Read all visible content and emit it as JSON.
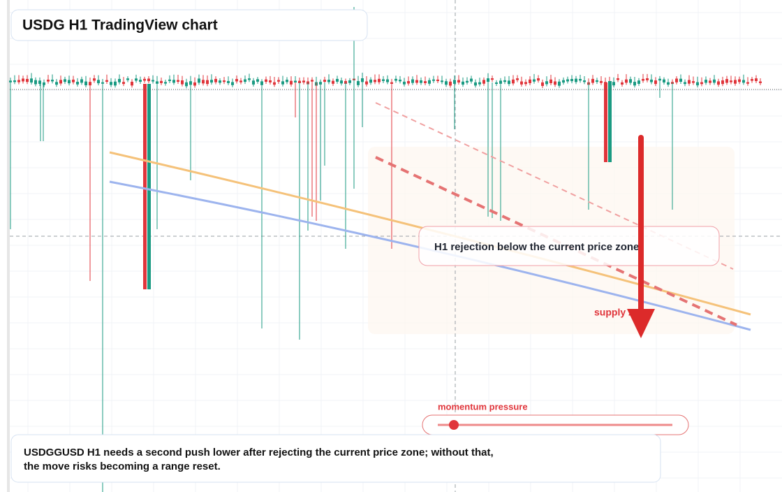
{
  "header": {
    "title": "USDG H1 TradingView chart"
  },
  "annotations": {
    "rejection": "H1 rejection below the current price zone",
    "zone": "supply zone",
    "momentum": "momentum pressure"
  },
  "note": {
    "lines": [
      "USDGGUSD H1 needs a second push lower after rejecting the current price zone; without that,",
      "the move risks becoming a range reset."
    ]
  }
}
